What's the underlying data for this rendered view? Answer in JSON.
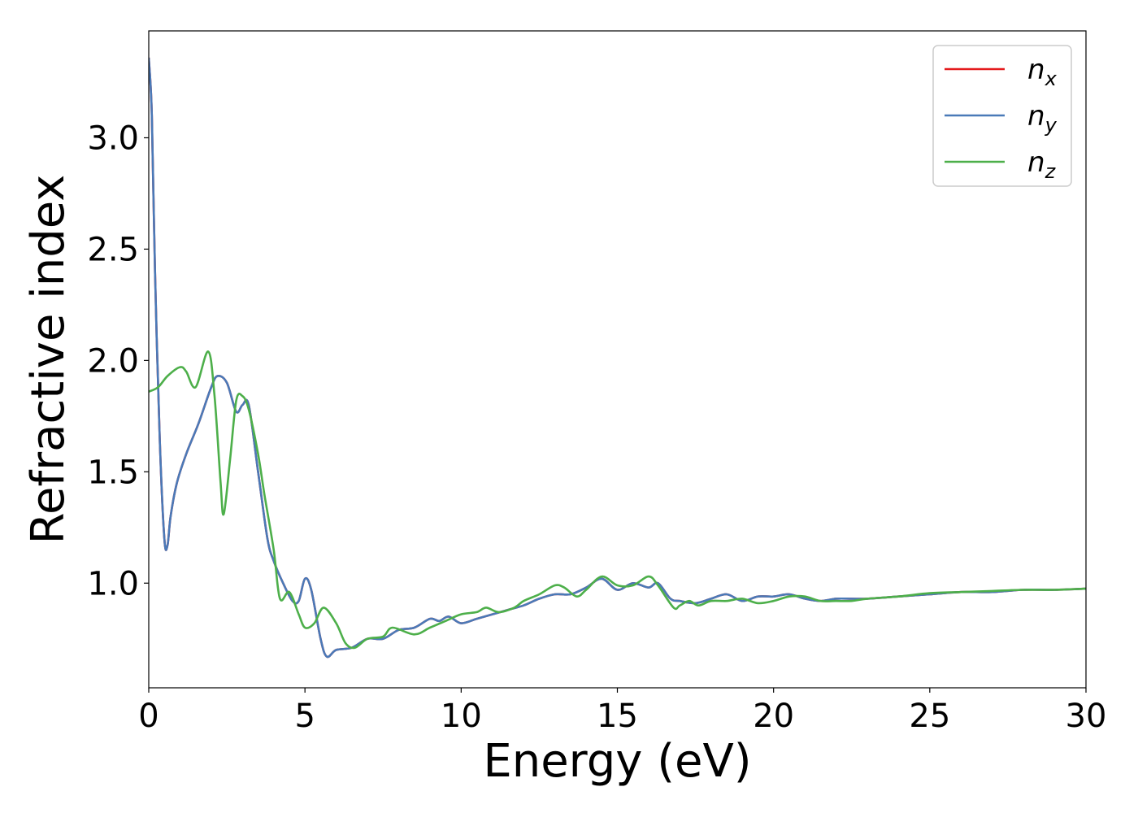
{
  "chart_data": {
    "type": "line",
    "xlabel": "Energy (eV)",
    "ylabel": "Refractive index",
    "xlim": [
      0,
      30
    ],
    "ylim": [
      0.53,
      3.48
    ],
    "xticks": [
      0,
      5,
      10,
      15,
      20,
      25,
      30
    ],
    "xtick_labels": [
      "0",
      "5",
      "10",
      "15",
      "20",
      "25",
      "30"
    ],
    "yticks": [
      1.0,
      1.5,
      2.0,
      2.5,
      3.0
    ],
    "ytick_labels": [
      "1.0",
      "1.5",
      "2.0",
      "2.5",
      "3.0"
    ],
    "grid": false,
    "legend_position": "top-right",
    "series": [
      {
        "name": "n_x",
        "legend_base": "n",
        "legend_sub": "x",
        "color": "#e41a1c",
        "x": [
          0,
          0.1,
          0.2,
          0.35,
          0.5,
          0.6,
          0.7,
          0.9,
          1.2,
          1.6,
          2.0,
          2.2,
          2.5,
          2.8,
          3.0,
          3.2,
          3.5,
          3.8,
          4.0,
          4.3,
          4.6,
          4.8,
          5.0,
          5.2,
          5.5,
          5.7,
          6.0,
          6.5,
          7.0,
          7.5,
          8.0,
          8.5,
          9.0,
          9.3,
          9.6,
          10.0,
          10.5,
          11.0,
          11.5,
          12.0,
          12.5,
          13.0,
          13.5,
          14.0,
          14.5,
          15.0,
          15.5,
          16.0,
          16.3,
          16.7,
          17.0,
          17.5,
          18.0,
          18.5,
          19.0,
          19.5,
          20.0,
          20.5,
          21.0,
          21.5,
          22.0,
          22.5,
          23.0,
          24.0,
          25.0,
          26.0,
          27.0,
          28.0,
          29.0,
          30.0
        ],
        "values": [
          3.36,
          3.1,
          2.4,
          1.65,
          1.2,
          1.17,
          1.3,
          1.45,
          1.58,
          1.72,
          1.88,
          1.93,
          1.9,
          1.77,
          1.8,
          1.8,
          1.5,
          1.2,
          1.1,
          1.0,
          0.92,
          0.92,
          1.02,
          0.97,
          0.75,
          0.67,
          0.7,
          0.71,
          0.75,
          0.75,
          0.79,
          0.8,
          0.84,
          0.83,
          0.85,
          0.82,
          0.84,
          0.86,
          0.88,
          0.9,
          0.93,
          0.95,
          0.95,
          0.98,
          1.02,
          0.97,
          1.0,
          0.98,
          1.0,
          0.93,
          0.92,
          0.91,
          0.93,
          0.95,
          0.92,
          0.94,
          0.94,
          0.95,
          0.93,
          0.92,
          0.93,
          0.93,
          0.93,
          0.94,
          0.95,
          0.96,
          0.96,
          0.97,
          0.97,
          0.975
        ]
      },
      {
        "name": "n_y",
        "legend_base": "n",
        "legend_sub": "y",
        "color": "#4a7ab8",
        "x": [
          0,
          0.1,
          0.2,
          0.35,
          0.5,
          0.6,
          0.7,
          0.9,
          1.2,
          1.6,
          2.0,
          2.2,
          2.5,
          2.8,
          3.0,
          3.2,
          3.5,
          3.8,
          4.0,
          4.3,
          4.6,
          4.8,
          5.0,
          5.2,
          5.5,
          5.7,
          6.0,
          6.5,
          7.0,
          7.5,
          8.0,
          8.5,
          9.0,
          9.3,
          9.6,
          10.0,
          10.5,
          11.0,
          11.5,
          12.0,
          12.5,
          13.0,
          13.5,
          14.0,
          14.5,
          15.0,
          15.5,
          16.0,
          16.3,
          16.7,
          17.0,
          17.5,
          18.0,
          18.5,
          19.0,
          19.5,
          20.0,
          20.5,
          21.0,
          21.5,
          22.0,
          22.5,
          23.0,
          24.0,
          25.0,
          26.0,
          27.0,
          28.0,
          29.0,
          30.0
        ],
        "values": [
          3.36,
          3.1,
          2.4,
          1.65,
          1.2,
          1.17,
          1.3,
          1.45,
          1.58,
          1.72,
          1.88,
          1.93,
          1.9,
          1.77,
          1.8,
          1.8,
          1.5,
          1.2,
          1.1,
          1.0,
          0.92,
          0.92,
          1.02,
          0.97,
          0.75,
          0.67,
          0.7,
          0.71,
          0.75,
          0.75,
          0.79,
          0.8,
          0.84,
          0.83,
          0.85,
          0.82,
          0.84,
          0.86,
          0.88,
          0.9,
          0.93,
          0.95,
          0.95,
          0.98,
          1.02,
          0.97,
          1.0,
          0.98,
          1.0,
          0.93,
          0.92,
          0.91,
          0.93,
          0.95,
          0.92,
          0.94,
          0.94,
          0.95,
          0.93,
          0.92,
          0.93,
          0.93,
          0.93,
          0.94,
          0.95,
          0.96,
          0.96,
          0.97,
          0.97,
          0.975
        ]
      },
      {
        "name": "n_z",
        "legend_base": "n",
        "legend_sub": "z",
        "color": "#4daf4a",
        "x": [
          0,
          0.3,
          0.6,
          1.0,
          1.2,
          1.5,
          1.9,
          2.1,
          2.3,
          2.4,
          2.6,
          2.8,
          3.0,
          3.2,
          3.5,
          3.7,
          4.0,
          4.2,
          4.5,
          4.8,
          5.0,
          5.3,
          5.6,
          6.0,
          6.3,
          6.6,
          7.0,
          7.5,
          7.8,
          8.5,
          9.0,
          9.5,
          10.0,
          10.5,
          10.8,
          11.2,
          11.7,
          12.0,
          12.5,
          13.0,
          13.3,
          13.7,
          14.0,
          14.5,
          15.0,
          15.5,
          16.0,
          16.3,
          16.8,
          17.0,
          17.3,
          17.6,
          18.0,
          18.5,
          19.0,
          19.5,
          20.0,
          20.5,
          21.0,
          21.5,
          22.0,
          22.5,
          23.0,
          24.0,
          25.0,
          26.0,
          27.0,
          28.0,
          29.0,
          30.0
        ],
        "values": [
          1.86,
          1.88,
          1.93,
          1.97,
          1.95,
          1.88,
          2.04,
          1.85,
          1.45,
          1.31,
          1.55,
          1.82,
          1.84,
          1.78,
          1.58,
          1.4,
          1.15,
          0.93,
          0.96,
          0.86,
          0.8,
          0.82,
          0.89,
          0.82,
          0.73,
          0.71,
          0.75,
          0.76,
          0.8,
          0.77,
          0.8,
          0.83,
          0.86,
          0.87,
          0.89,
          0.87,
          0.89,
          0.92,
          0.95,
          0.99,
          0.98,
          0.94,
          0.97,
          1.03,
          0.99,
          0.99,
          1.03,
          0.99,
          0.89,
          0.9,
          0.92,
          0.9,
          0.92,
          0.92,
          0.93,
          0.91,
          0.92,
          0.94,
          0.94,
          0.92,
          0.92,
          0.92,
          0.93,
          0.94,
          0.955,
          0.96,
          0.965,
          0.97,
          0.97,
          0.975
        ]
      }
    ]
  }
}
